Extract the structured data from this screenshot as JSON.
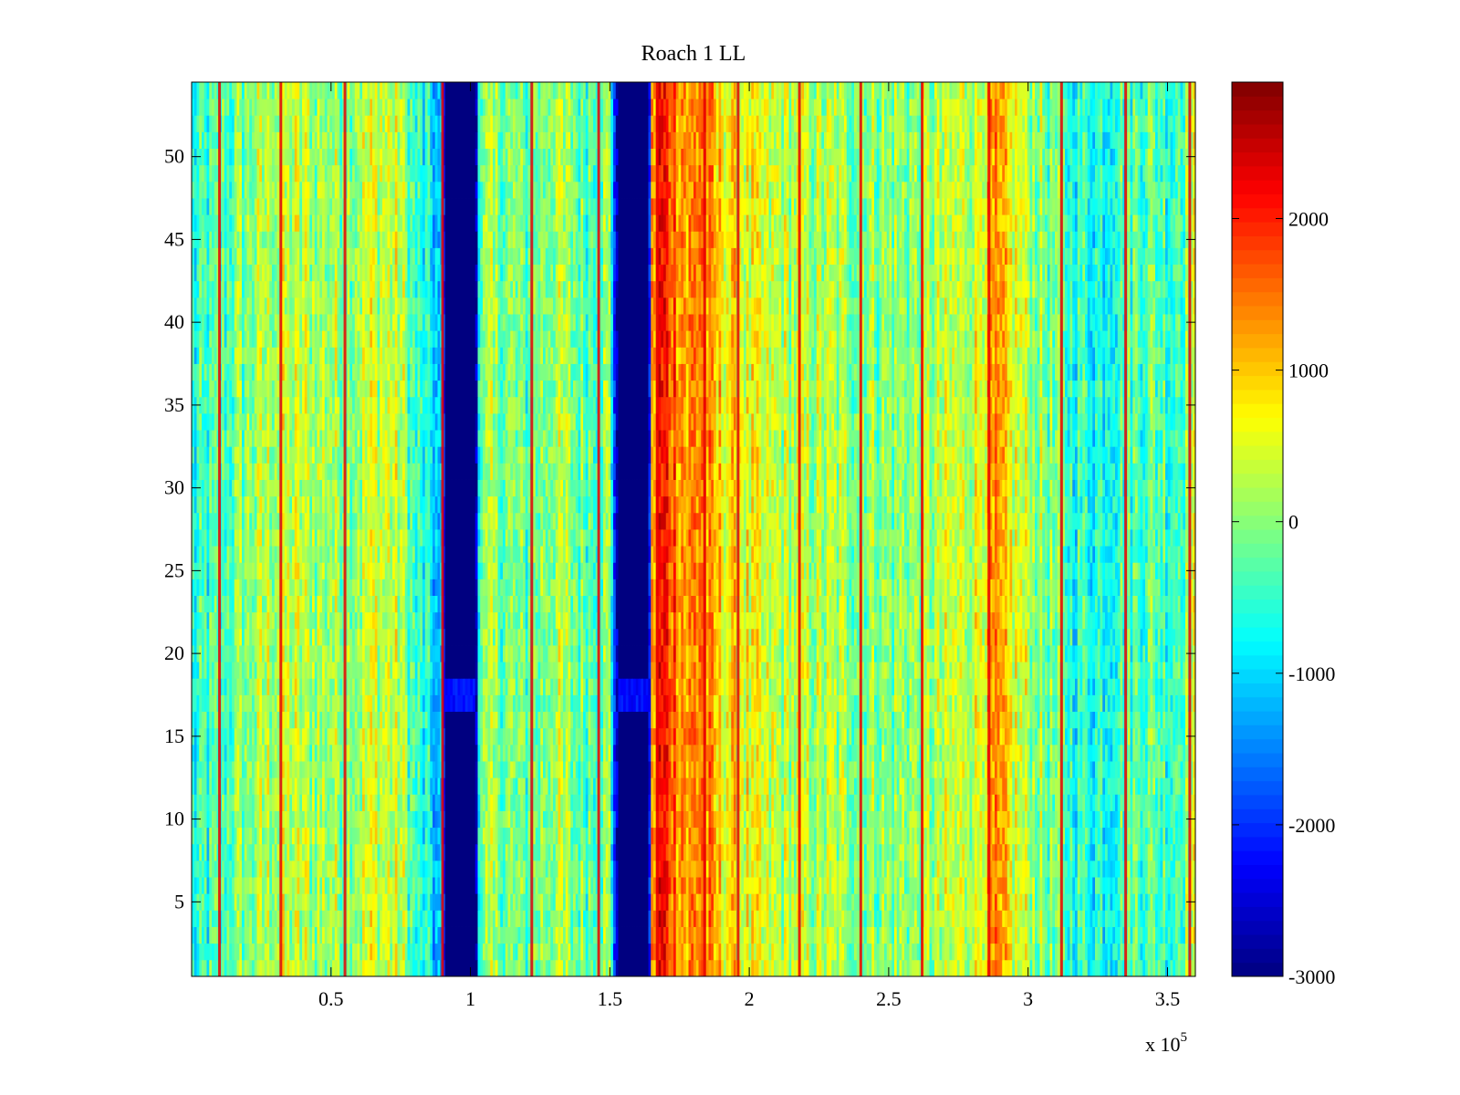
{
  "chart_data": {
    "type": "heatmap",
    "title": "Roach 1 LL",
    "xlabel": "",
    "ylabel": "",
    "x_multiplier_label": "x 10",
    "x_multiplier_exponent": "5",
    "xlim": [
      0,
      3.6
    ],
    "ylim": [
      0.5,
      54.5
    ],
    "rows": 54,
    "x_ticks": [
      0.5,
      1,
      1.5,
      2,
      2.5,
      3,
      3.5
    ],
    "x_tick_labels": [
      "0.5",
      "1",
      "1.5",
      "2",
      "2.5",
      "3",
      "3.5"
    ],
    "y_ticks": [
      5,
      10,
      15,
      20,
      25,
      30,
      35,
      40,
      45,
      50
    ],
    "y_tick_labels": [
      "5",
      "10",
      "15",
      "20",
      "25",
      "30",
      "35",
      "40",
      "45",
      "50"
    ],
    "colorbar": {
      "colormap": "jet",
      "clim": [
        -3000,
        2900
      ],
      "ticks": [
        -3000,
        -2000,
        -1000,
        0,
        1000,
        2000
      ],
      "tick_labels": [
        "-3000",
        "-2000",
        "-1000",
        "0",
        "1000",
        "2000"
      ]
    },
    "column_profile": [
      {
        "x": 0.0,
        "v": -700
      },
      {
        "x": 0.1,
        "v": -400
      },
      {
        "x": 0.2,
        "v": 0
      },
      {
        "x": 0.3,
        "v": 300
      },
      {
        "x": 0.45,
        "v": 200
      },
      {
        "x": 0.55,
        "v": 100
      },
      {
        "x": 0.65,
        "v": 400
      },
      {
        "x": 0.75,
        "v": 300
      },
      {
        "x": 0.8,
        "v": -500
      },
      {
        "x": 0.86,
        "v": -900
      },
      {
        "x": 0.9,
        "v": -1500
      },
      {
        "x": 0.91,
        "v": -3000
      },
      {
        "x": 1.02,
        "v": -3000
      },
      {
        "x": 1.03,
        "v": -200
      },
      {
        "x": 1.1,
        "v": 0
      },
      {
        "x": 1.2,
        "v": -300
      },
      {
        "x": 1.3,
        "v": 200
      },
      {
        "x": 1.4,
        "v": -200
      },
      {
        "x": 1.5,
        "v": 0
      },
      {
        "x": 1.53,
        "v": -3000
      },
      {
        "x": 1.64,
        "v": -3000
      },
      {
        "x": 1.65,
        "v": 1000
      },
      {
        "x": 1.68,
        "v": 2100
      },
      {
        "x": 1.72,
        "v": 1800
      },
      {
        "x": 1.78,
        "v": 1200
      },
      {
        "x": 1.83,
        "v": 1600
      },
      {
        "x": 1.88,
        "v": 900
      },
      {
        "x": 1.95,
        "v": 700
      },
      {
        "x": 2.05,
        "v": 300
      },
      {
        "x": 2.2,
        "v": 200
      },
      {
        "x": 2.35,
        "v": 100
      },
      {
        "x": 2.5,
        "v": 0
      },
      {
        "x": 2.65,
        "v": 100
      },
      {
        "x": 2.8,
        "v": 400
      },
      {
        "x": 2.88,
        "v": 1100
      },
      {
        "x": 2.95,
        "v": 500
      },
      {
        "x": 3.05,
        "v": 0
      },
      {
        "x": 3.15,
        "v": -500
      },
      {
        "x": 3.25,
        "v": -600
      },
      {
        "x": 3.35,
        "v": -300
      },
      {
        "x": 3.45,
        "v": -200
      },
      {
        "x": 3.52,
        "v": -400
      },
      {
        "x": 3.6,
        "v": 300
      }
    ],
    "dark_bands": [
      {
        "x_start": 0.91,
        "x_end": 1.02
      },
      {
        "x_start": 1.53,
        "x_end": 1.64
      }
    ],
    "bright_lines_x": [
      0.1,
      0.32,
      0.55,
      0.9,
      1.22,
      1.46,
      1.67,
      1.84,
      1.96,
      2.18,
      2.4,
      2.62,
      2.86,
      3.12,
      3.35,
      3.58
    ]
  }
}
